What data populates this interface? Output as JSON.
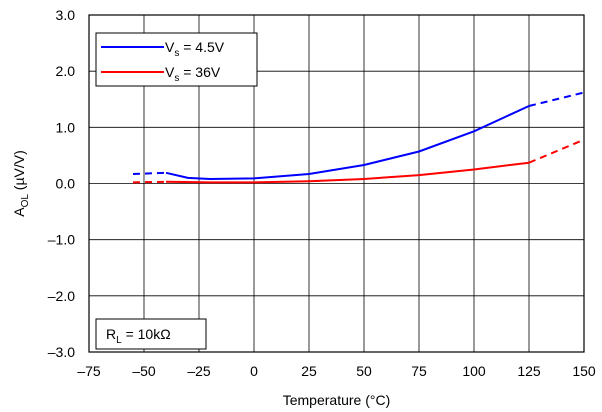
{
  "chart_data": {
    "type": "line",
    "xlabel": "Temperature (°C)",
    "ylabel": {
      "main": "A",
      "sub": "OL",
      "rest": " (µV/V)"
    },
    "xlim": [
      -75,
      150
    ],
    "ylim": [
      -3,
      3
    ],
    "xticks": [
      "–75",
      "–50",
      "–25",
      "0",
      "25",
      "50",
      "75",
      "100",
      "125",
      "150"
    ],
    "yticks": [
      "3.0",
      "2.0",
      "1.0",
      "0.0",
      "–1.0",
      "–2.0",
      "–3.0"
    ],
    "x_ticks_values": [
      -75,
      -50,
      -25,
      0,
      25,
      50,
      75,
      100,
      125,
      150
    ],
    "y_ticks_values": [
      3,
      2,
      1,
      0,
      -1,
      -2,
      -3
    ],
    "grid": true,
    "legend_position": "top-left",
    "series": [
      {
        "name": {
          "main": "V",
          "sub": "s",
          "rest": " = 4.5V"
        },
        "color": "#0000ff",
        "dashed_segments": [
          [
            [
              -55,
              0.17
            ],
            [
              -40,
              0.19
            ]
          ],
          [
            [
              125,
              1.38
            ],
            [
              150,
              1.62
            ]
          ]
        ],
        "solid": [
          [
            -40,
            0.19
          ],
          [
            -30,
            0.1
          ],
          [
            -20,
            0.08
          ],
          [
            0,
            0.09
          ],
          [
            25,
            0.17
          ],
          [
            50,
            0.33
          ],
          [
            75,
            0.57
          ],
          [
            100,
            0.93
          ],
          [
            125,
            1.38
          ]
        ]
      },
      {
        "name": {
          "main": "V",
          "sub": "s",
          "rest": " = 36V"
        },
        "color": "#ff0000",
        "dashed_segments": [
          [
            [
              -55,
              0.02
            ],
            [
              -40,
              0.03
            ]
          ],
          [
            [
              125,
              0.37
            ],
            [
              150,
              0.78
            ]
          ]
        ],
        "solid": [
          [
            -40,
            0.03
          ],
          [
            -20,
            0.02
          ],
          [
            0,
            0.02
          ],
          [
            25,
            0.04
          ],
          [
            50,
            0.08
          ],
          [
            75,
            0.15
          ],
          [
            100,
            0.25
          ],
          [
            125,
            0.37
          ]
        ]
      }
    ],
    "annotation": {
      "main": "R",
      "sub": "L",
      "rest": " = 10kΩ",
      "position": "bottom-left"
    }
  }
}
